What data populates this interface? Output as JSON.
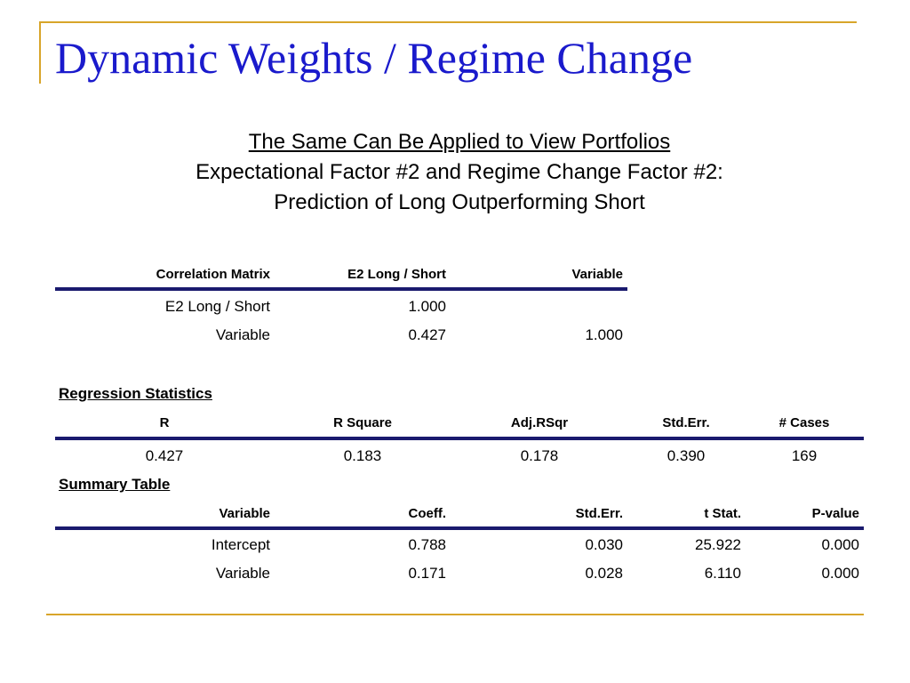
{
  "title": "Dynamic Weights / Regime Change",
  "subtitle": {
    "line1": "The Same Can Be Applied to View Portfolios",
    "line2": "Expectational Factor #2 and Regime Change Factor #2:",
    "line3": "Prediction of Long Outperforming Short"
  },
  "correlation": {
    "headers": [
      "Correlation Matrix",
      "E2 Long / Short",
      "Variable"
    ],
    "rows": [
      [
        "E2 Long / Short",
        "1.000",
        ""
      ],
      [
        "Variable",
        "0.427",
        "1.000"
      ]
    ]
  },
  "regression": {
    "title": "Regression Statistics",
    "headers": [
      "R",
      "R Square",
      "Adj.RSqr",
      "Std.Err.",
      "# Cases"
    ],
    "values": [
      "0.427",
      "0.183",
      "0.178",
      "0.390",
      "169"
    ]
  },
  "summary": {
    "title": "Summary Table",
    "headers": [
      "Variable",
      "Coeff.",
      "Std.Err.",
      "t Stat.",
      "P-value"
    ],
    "rows": [
      [
        "Intercept",
        "0.788",
        "0.030",
        "25.922",
        "0.000"
      ],
      [
        "Variable",
        "0.171",
        "0.028",
        "6.110",
        "0.000"
      ]
    ]
  },
  "colors": {
    "title": "#1a1acc",
    "accent_gold": "#d8a52a",
    "rule_navy": "#1a1a6e"
  }
}
